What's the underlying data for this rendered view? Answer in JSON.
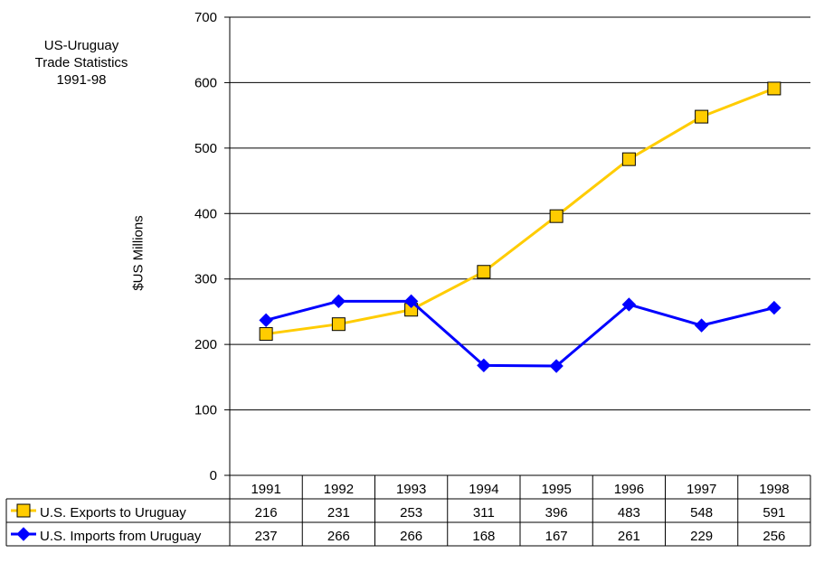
{
  "chart_data": {
    "type": "line",
    "title": "US-Uruguay Trade Statistics 1991-98",
    "title_lines": [
      "US-Uruguay",
      "Trade Statistics",
      "1991-98"
    ],
    "ylabel": "$US Millions",
    "xlabel": "",
    "ylim": [
      0,
      700
    ],
    "yticks": [
      0,
      100,
      200,
      300,
      400,
      500,
      600,
      700
    ],
    "grid": true,
    "legend": "data-table",
    "categories": [
      "1991",
      "1992",
      "1993",
      "1994",
      "1995",
      "1996",
      "1997",
      "1998"
    ],
    "series": [
      {
        "name": "U.S. Exports to Uruguay",
        "values": [
          216,
          231,
          253,
          311,
          396,
          483,
          548,
          591
        ],
        "color": "#FFCC00",
        "marker": "square",
        "marker_fill": "#FFCC00"
      },
      {
        "name": "U.S. Imports from Uruguay",
        "values": [
          237,
          266,
          266,
          168,
          167,
          261,
          229,
          256
        ],
        "color": "#0000FF",
        "marker": "diamond",
        "marker_fill": "#0000FF"
      }
    ]
  }
}
